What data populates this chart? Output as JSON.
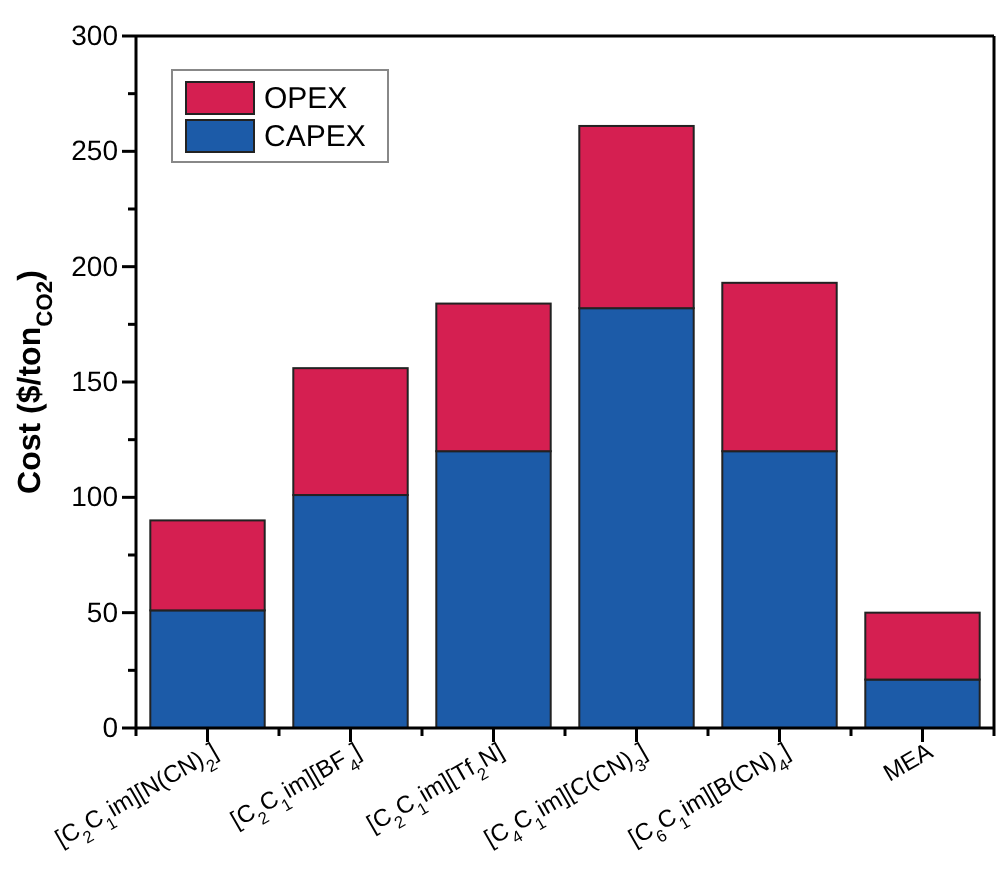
{
  "chart_data": {
    "type": "bar",
    "stacked": true,
    "ylabel": "Cost ($/ton$_{CO2}$)",
    "categories": [
      "[C$_{2}$C$_{1}$im][N(CN)$_{2}$]",
      "[C$_{2}$C$_{1}$im][BF$_{4}$]",
      "[C$_{2}$C$_{1}$im][Tf$_{2}$N]",
      "[C$_{4}$C$_{1}$im][C(CN)$_{3}$]",
      "[C$_{6}$C$_{1}$im][B(CN)$_{4}$]",
      "MEA"
    ],
    "series": [
      {
        "name": "CAPEX",
        "color": "#1c5ba8",
        "values": [
          51,
          101,
          120,
          182,
          120,
          21
        ]
      },
      {
        "name": "OPEX",
        "color": "#d51f51",
        "values": [
          39,
          55,
          64,
          79,
          73,
          29
        ]
      }
    ],
    "ylim": [
      0,
      300
    ],
    "yticks": [
      0,
      {
        "value": 25,
        "label": null
      },
      50,
      {
        "value": 75,
        "label": null
      },
      100,
      {
        "value": 125,
        "label": null
      },
      150,
      {
        "value": 175,
        "label": null
      },
      200,
      {
        "value": 225,
        "label": null
      },
      250,
      {
        "value": 275,
        "label": null
      },
      300
    ],
    "legend": "top left",
    "grid": false
  }
}
